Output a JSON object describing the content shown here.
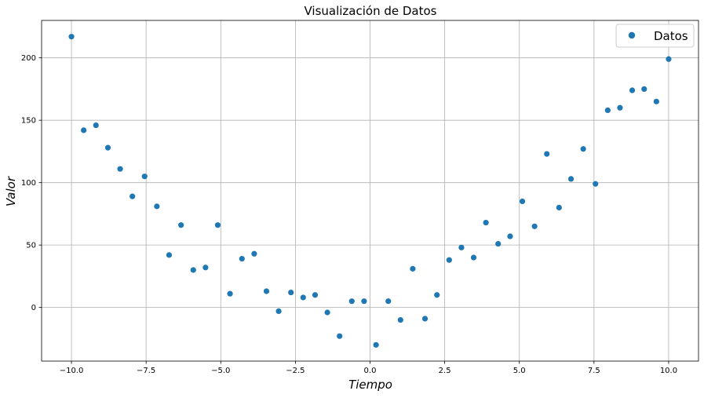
{
  "chart_data": {
    "type": "scatter",
    "title": "Visualización de Datos",
    "xlabel": "Tiempo",
    "ylabel": "Valor",
    "xlim": [
      -11,
      11
    ],
    "ylim": [
      -43,
      230
    ],
    "x_ticks": [
      -10,
      -7.5,
      -5,
      -2.5,
      0,
      2.5,
      5,
      7.5,
      10
    ],
    "x_tick_labels": [
      "−10.0",
      "−7.5",
      "−5.0",
      "−2.5",
      "0.0",
      "2.5",
      "5.0",
      "7.5",
      "10.0"
    ],
    "y_ticks": [
      0,
      50,
      100,
      150,
      200
    ],
    "y_tick_labels": [
      "0",
      "50",
      "100",
      "150",
      "200"
    ],
    "grid": true,
    "legend_position": "top-right",
    "series": [
      {
        "name": "Datos",
        "color": "#1f77b4",
        "x": [
          -10.0,
          -9.59,
          -9.18,
          -8.78,
          -8.37,
          -7.96,
          -7.55,
          -7.14,
          -6.73,
          -6.33,
          -5.92,
          -5.51,
          -5.1,
          -4.69,
          -4.29,
          -3.88,
          -3.47,
          -3.06,
          -2.65,
          -2.24,
          -1.84,
          -1.43,
          -1.02,
          -0.61,
          -0.2,
          0.2,
          0.61,
          1.02,
          1.43,
          1.84,
          2.24,
          2.65,
          3.06,
          3.47,
          3.88,
          4.29,
          4.69,
          5.1,
          5.51,
          5.92,
          6.33,
          6.73,
          7.14,
          7.55,
          7.96,
          8.37,
          8.78,
          9.18,
          9.59,
          10.0
        ],
        "y": [
          217,
          142,
          146,
          128,
          111,
          89,
          105,
          81,
          42,
          66,
          30,
          32,
          66,
          11,
          39,
          43,
          13,
          -3,
          12,
          8,
          10,
          -4,
          -23,
          5,
          5,
          -30,
          5,
          -10,
          31,
          -9,
          10,
          38,
          48,
          40,
          68,
          51,
          57,
          85,
          65,
          123,
          80,
          103,
          127,
          99,
          158,
          160,
          174,
          175,
          165,
          199
        ]
      }
    ]
  }
}
